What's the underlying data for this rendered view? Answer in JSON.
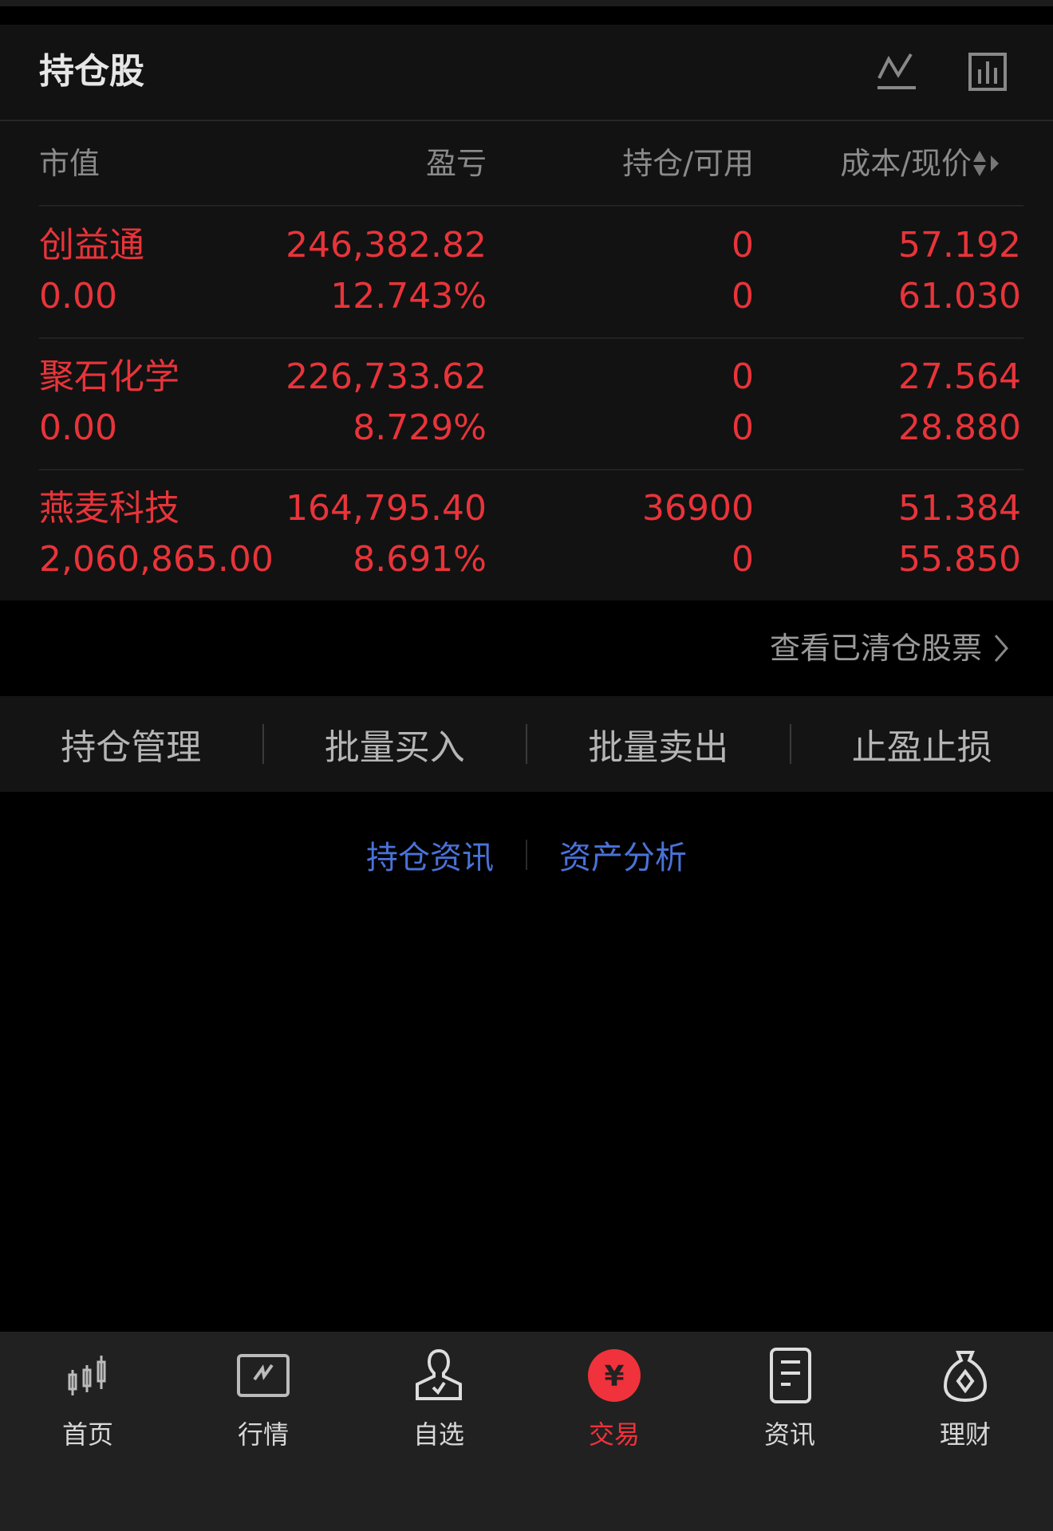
{
  "header": {
    "title": "持仓股",
    "icons": [
      "line-chart-icon",
      "bar-chart-icon"
    ]
  },
  "columns": [
    "市值",
    "盈亏",
    "持仓/可用",
    "成本/现价"
  ],
  "rows": [
    {
      "name": "创益通",
      "market_value": "0.00",
      "pnl": "246,382.82",
      "pnl_pct": "12.743%",
      "position": "0",
      "available": "0",
      "cost": "57.192",
      "price": "61.030"
    },
    {
      "name": "聚石化学",
      "market_value": "0.00",
      "pnl": "226,733.62",
      "pnl_pct": "8.729%",
      "position": "0",
      "available": "0",
      "cost": "27.564",
      "price": "28.880"
    },
    {
      "name": "燕麦科技",
      "market_value": "2,060,865.00",
      "pnl": "164,795.40",
      "pnl_pct": "8.691%",
      "position": "36900",
      "available": "0",
      "cost": "51.384",
      "price": "55.850"
    }
  ],
  "view_cleared": "查看已清仓股票",
  "actions": [
    "持仓管理",
    "批量买入",
    "批量卖出",
    "止盈止损"
  ],
  "links": [
    "持仓资讯",
    "资产分析"
  ],
  "nav": [
    {
      "label": "首页",
      "icon": "candlestick-icon"
    },
    {
      "label": "行情",
      "icon": "market-chart-icon"
    },
    {
      "label": "自选",
      "icon": "watchlist-person-icon"
    },
    {
      "label": "交易",
      "icon": "yuan-icon",
      "active": true
    },
    {
      "label": "资讯",
      "icon": "news-document-icon"
    },
    {
      "label": "理财",
      "icon": "money-bag-icon"
    }
  ],
  "colors": {
    "up": "#e8343a",
    "link": "#4a72d8",
    "active": "#f0323c"
  }
}
